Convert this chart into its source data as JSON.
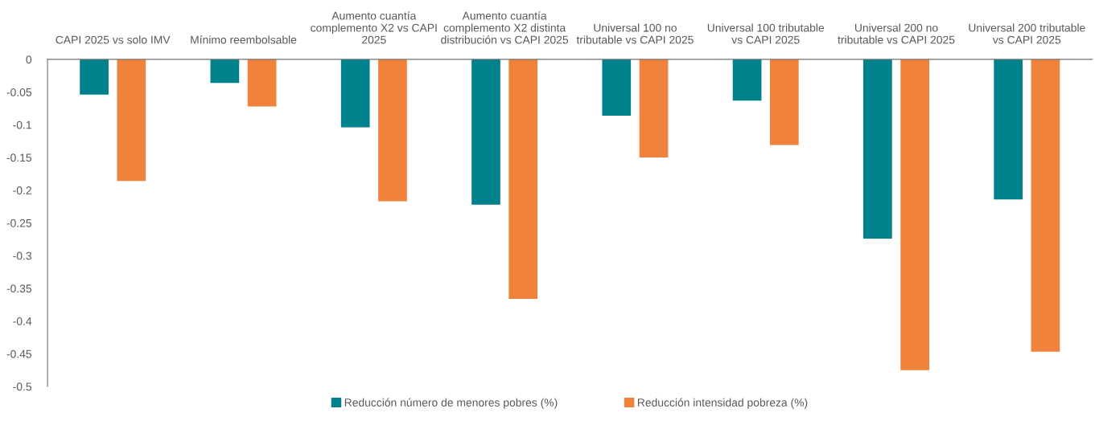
{
  "chart_data": {
    "type": "bar",
    "categories": [
      "CAPI 2025 vs solo IMV",
      "Mínimo reembolsable",
      "Aumento cuantía\ncomplemento X2 vs CAPI\n2025",
      "Aumento cuantía\ncomplemento X2 distinta\ndistribución vs CAPI 2025",
      "Universal 100 no\ntributable vs CAPI 2025",
      "Universal 100 tributable\nvs CAPI 2025",
      "Universal 200 no\ntributable vs CAPI 2025",
      "Universal 200 tributable\nvs CAPI 2025"
    ],
    "series": [
      {
        "name": "Reducción número de menores pobres (%)",
        "color": "#00828c",
        "values": [
          -0.054,
          -0.036,
          -0.104,
          -0.222,
          -0.086,
          -0.063,
          -0.274,
          -0.214
        ]
      },
      {
        "name": "Reducción intensidad pobreza (%)",
        "color": "#f0823c",
        "values": [
          -0.186,
          -0.072,
          -0.217,
          -0.366,
          -0.15,
          -0.131,
          -0.475,
          -0.447
        ]
      }
    ],
    "ylim": [
      -0.5,
      0
    ],
    "yticks": [
      0,
      -0.05,
      -0.1,
      -0.15,
      -0.2,
      -0.25,
      -0.3,
      -0.35,
      -0.4,
      -0.45,
      -0.5
    ],
    "grid": false,
    "legend": "bottom"
  }
}
